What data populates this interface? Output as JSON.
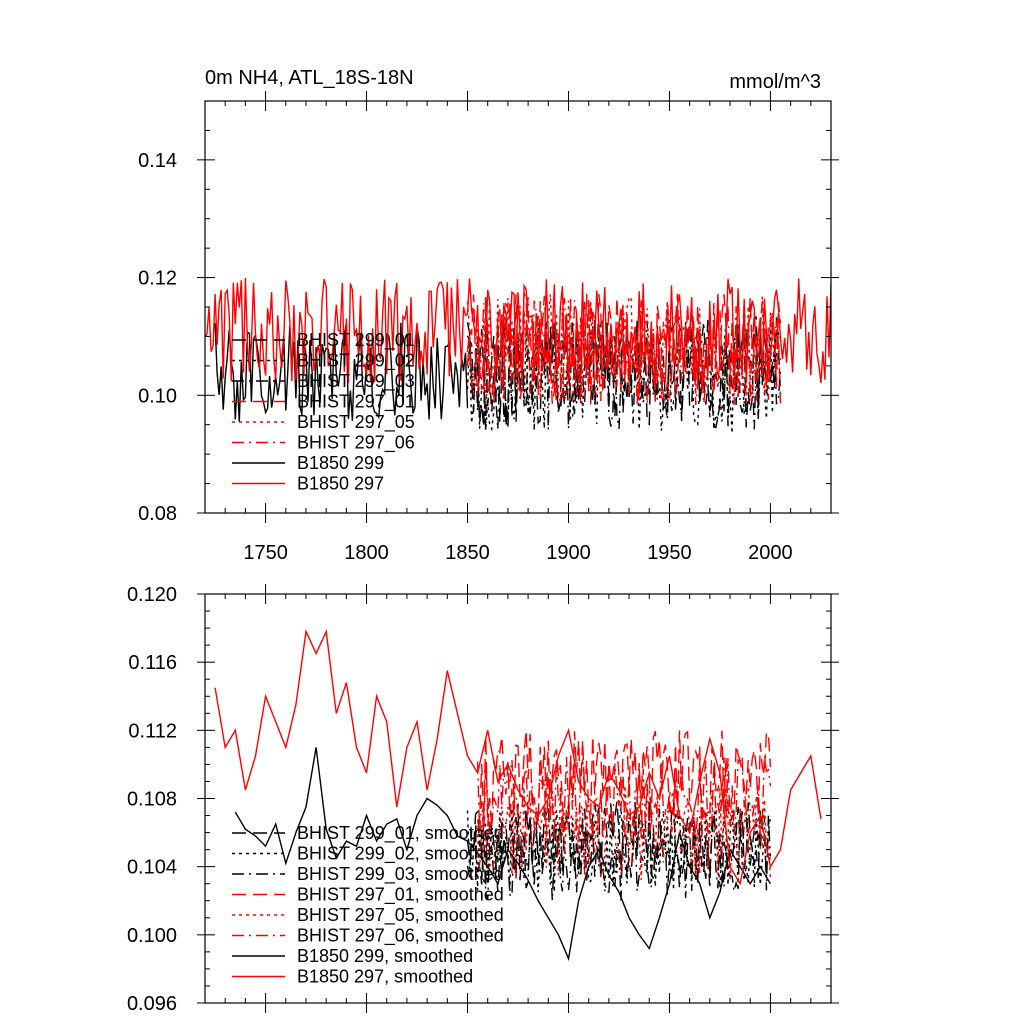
{
  "chart_data": [
    {
      "type": "line",
      "title": "0m NH4, ATL_18S-18N",
      "units": "mmol/m^3",
      "xlim": [
        1720,
        2030
      ],
      "ylim": [
        0.08,
        0.15
      ],
      "xticks": [
        1750,
        1800,
        1850,
        1900,
        1950,
        2000
      ],
      "yticks": [
        0.08,
        0.1,
        0.12,
        0.14
      ],
      "ytick_labels": [
        "0.08",
        "0.10",
        "0.12",
        "0.14"
      ],
      "grid": false,
      "legend_position": "lower-left",
      "series": [
        {
          "name": "BHIST 299_01",
          "color": "#000000",
          "dash": "long-dash",
          "x_range": [
            1850,
            2005
          ],
          "base": 0.104,
          "amp": 0.0095,
          "seed": 11
        },
        {
          "name": "BHIST 299_02",
          "color": "#000000",
          "dash": "dot",
          "x_range": [
            1850,
            2005
          ],
          "base": 0.103,
          "amp": 0.0095,
          "seed": 12
        },
        {
          "name": "BHIST 299_03",
          "color": "#000000",
          "dash": "dash-dot",
          "x_range": [
            1850,
            2005
          ],
          "base": 0.1035,
          "amp": 0.0095,
          "seed": 13
        },
        {
          "name": "BHIST 297_01",
          "color": "#ff0000",
          "dash": "long-dash",
          "x_range": [
            1850,
            2005
          ],
          "base": 0.108,
          "amp": 0.0095,
          "seed": 21
        },
        {
          "name": "BHIST 297_05",
          "color": "#ff0000",
          "dash": "dot",
          "x_range": [
            1850,
            2005
          ],
          "base": 0.108,
          "amp": 0.0095,
          "seed": 22
        },
        {
          "name": "BHIST 297_06",
          "color": "#ff0000",
          "dash": "dash-dot",
          "x_range": [
            1850,
            2005
          ],
          "base": 0.1075,
          "amp": 0.0095,
          "seed": 23
        },
        {
          "name": "B1850 299",
          "color": "#000000",
          "dash": "solid",
          "x_range": [
            1725,
            1850
          ],
          "base": 0.104,
          "amp": 0.0085,
          "seed": 31
        },
        {
          "name": "B1850 297",
          "color": "#ff0000",
          "dash": "solid",
          "x_range": [
            1720,
            2030
          ],
          "base": 0.111,
          "amp": 0.009,
          "seed": 32
        }
      ]
    },
    {
      "type": "line",
      "xlim": [
        1720,
        2030
      ],
      "ylim": [
        0.096,
        0.12
      ],
      "yticks": [
        0.096,
        0.1,
        0.104,
        0.108,
        0.112,
        0.116,
        0.12
      ],
      "ytick_labels": [
        "0.096",
        "0.100",
        "0.104",
        "0.108",
        "0.112",
        "0.116",
        "0.120"
      ],
      "grid": false,
      "legend_position": "lower-left",
      "series": [
        {
          "name": "BHIST 299_01, smoothed",
          "color": "#000000",
          "dash": "long-dash",
          "x_range": [
            1850,
            2000
          ],
          "base": 0.1055,
          "amp": 0.0025,
          "seed": 41
        },
        {
          "name": "BHIST 299_02, smoothed",
          "color": "#000000",
          "dash": "dot",
          "x_range": [
            1850,
            2000
          ],
          "base": 0.105,
          "amp": 0.0025,
          "seed": 42
        },
        {
          "name": "BHIST 299_03, smoothed",
          "color": "#000000",
          "dash": "dash-dot",
          "x_range": [
            1850,
            2000
          ],
          "base": 0.1045,
          "amp": 0.0025,
          "seed": 43
        },
        {
          "name": "BHIST 297_01, smoothed",
          "color": "#ff0000",
          "dash": "long-dash",
          "x_range": [
            1855,
            2000
          ],
          "base": 0.109,
          "amp": 0.003,
          "seed": 51
        },
        {
          "name": "BHIST 297_05, smoothed",
          "color": "#ff0000",
          "dash": "dot",
          "x_range": [
            1855,
            2000
          ],
          "base": 0.106,
          "amp": 0.0028,
          "seed": 52
        },
        {
          "name": "BHIST 297_06, smoothed",
          "color": "#ff0000",
          "dash": "dash-dot",
          "x_range": [
            1855,
            2000
          ],
          "base": 0.108,
          "amp": 0.0025,
          "seed": 53
        },
        {
          "name": "B1850 299, smoothed",
          "color": "#000000",
          "dash": "solid",
          "x": [
            1735,
            1740,
            1745,
            1750,
            1755,
            1760,
            1765,
            1770,
            1775,
            1780,
            1785,
            1790,
            1795,
            1800,
            1805,
            1810,
            1815,
            1820,
            1825,
            1830,
            1835,
            1840,
            1845,
            1850,
            1855,
            1860,
            1865,
            1870,
            1875,
            1880,
            1885,
            1890,
            1895,
            1900,
            1905,
            1910,
            1915,
            1920,
            1925,
            1930,
            1935,
            1940,
            1945,
            1950,
            1955,
            1960,
            1965,
            1970,
            1975,
            1980,
            1985,
            1990,
            1995,
            2000
          ],
          "y": [
            0.1072,
            0.1062,
            0.1058,
            0.1052,
            0.1065,
            0.1042,
            0.106,
            0.1075,
            0.111,
            0.1062,
            0.1045,
            0.1055,
            0.1052,
            0.107,
            0.1055,
            0.1065,
            0.1068,
            0.105,
            0.107,
            0.108,
            0.1076,
            0.107,
            0.1058,
            0.1055,
            0.1048,
            0.104,
            0.103,
            0.105,
            0.1042,
            0.1032,
            0.102,
            0.101,
            0.1,
            0.0986,
            0.102,
            0.104,
            0.105,
            0.1035,
            0.1025,
            0.101,
            0.1,
            0.0992,
            0.101,
            0.103,
            0.106,
            0.104,
            0.103,
            0.101,
            0.1025,
            0.105,
            0.104,
            0.103,
            0.104,
            0.103
          ]
        },
        {
          "name": "B1850 297, smoothed",
          "color": "#ff0000",
          "dash": "solid",
          "x": [
            1725,
            1730,
            1735,
            1740,
            1745,
            1750,
            1755,
            1760,
            1765,
            1770,
            1775,
            1780,
            1785,
            1790,
            1795,
            1800,
            1805,
            1810,
            1815,
            1820,
            1825,
            1830,
            1835,
            1840,
            1845,
            1850,
            1855,
            1860,
            1865,
            1870,
            1875,
            1880,
            1885,
            1890,
            1895,
            1900,
            1905,
            1910,
            1915,
            1920,
            1925,
            1930,
            1935,
            1940,
            1945,
            1950,
            1955,
            1960,
            1965,
            1970,
            1975,
            1980,
            1985,
            1990,
            1995,
            2000,
            2005,
            2010,
            2015,
            2020,
            2025
          ],
          "y": [
            0.1145,
            0.111,
            0.112,
            0.1085,
            0.1105,
            0.114,
            0.1125,
            0.111,
            0.1135,
            0.1178,
            0.1165,
            0.1178,
            0.113,
            0.1148,
            0.111,
            0.1095,
            0.114,
            0.1125,
            0.1075,
            0.111,
            0.1125,
            0.1085,
            0.1115,
            0.1155,
            0.113,
            0.1105,
            0.1095,
            0.112,
            0.109,
            0.11,
            0.1085,
            0.1075,
            0.107,
            0.108,
            0.1105,
            0.112,
            0.109,
            0.108,
            0.1075,
            0.1095,
            0.1085,
            0.107,
            0.1075,
            0.1095,
            0.108,
            0.1105,
            0.107,
            0.106,
            0.109,
            0.1115,
            0.1095,
            0.104,
            0.103,
            0.106,
            0.107,
            0.104,
            0.105,
            0.1085,
            0.1095,
            0.1105,
            0.1068
          ]
        }
      ]
    }
  ]
}
